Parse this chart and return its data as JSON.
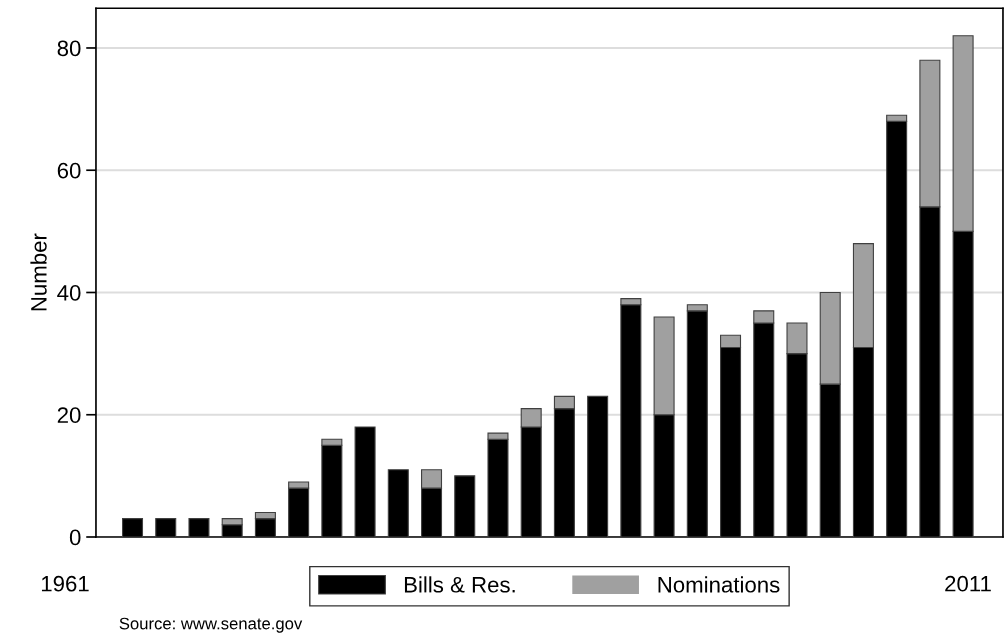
{
  "chart_data": {
    "type": "bar",
    "stacked": true,
    "ylabel": "Number",
    "categories": [
      null,
      null,
      null,
      null,
      null,
      null,
      null,
      null,
      null,
      null,
      null,
      null,
      null,
      null,
      null,
      null,
      null,
      null,
      null,
      null,
      null,
      null,
      null,
      null,
      null,
      null
    ],
    "series": [
      {
        "name": "Bills & Res.",
        "color": "#000000",
        "values": [
          3,
          3,
          3,
          2,
          3,
          8,
          15,
          18,
          11,
          8,
          10,
          16,
          18,
          21,
          23,
          38,
          20,
          37,
          31,
          35,
          30,
          25,
          31,
          68,
          54,
          50
        ]
      },
      {
        "name": "Nominations",
        "color": "#a0a0a0",
        "values": [
          0,
          0,
          0,
          1,
          1,
          1,
          1,
          0,
          0,
          3,
          0,
          1,
          3,
          2,
          0,
          1,
          16,
          1,
          2,
          2,
          5,
          15,
          17,
          1,
          24,
          32
        ]
      }
    ],
    "ylim": [
      0,
      86.5
    ],
    "yticks": [
      0,
      20,
      40,
      60,
      80
    ],
    "grid": "y",
    "legend": "bottom",
    "annotations": [
      "1961",
      "2011",
      "Source: www.senate.gov"
    ]
  }
}
